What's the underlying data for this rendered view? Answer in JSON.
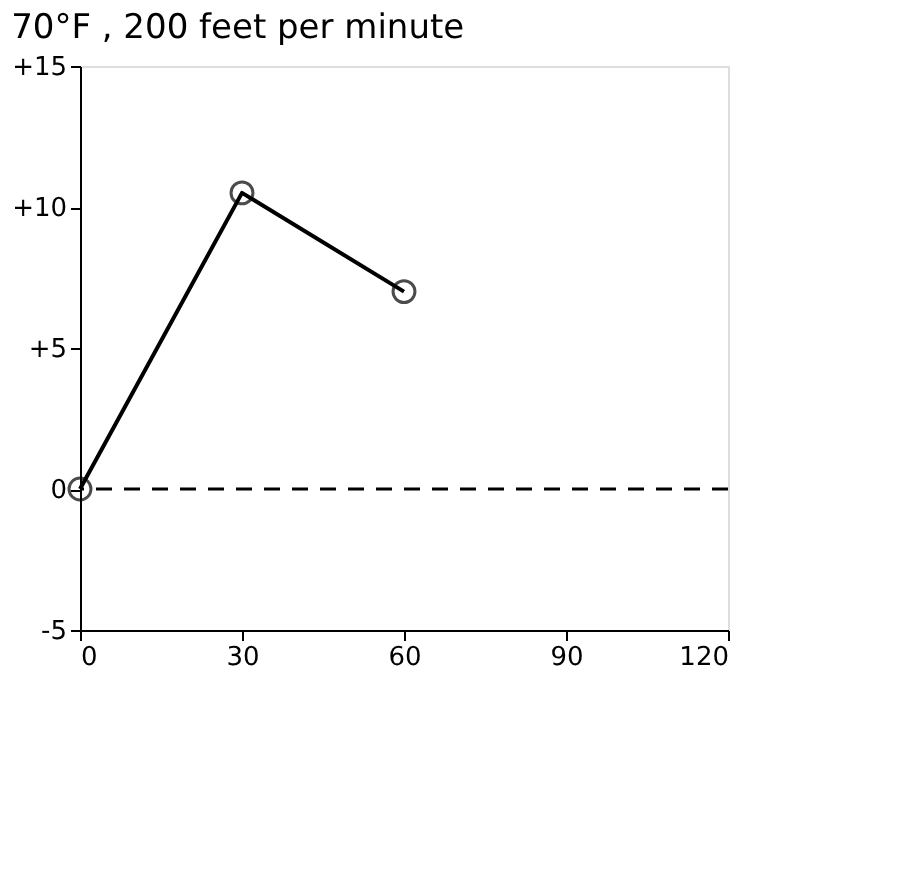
{
  "chart_data": {
    "type": "line",
    "title": "70°F , 200 feet per minute",
    "x": [
      0,
      30,
      60
    ],
    "series": [
      {
        "color": "#000000",
        "values": [
          0,
          10.5,
          7
        ]
      }
    ],
    "xlim": [
      0,
      120
    ],
    "xticks": [
      0,
      30,
      60,
      90,
      120
    ],
    "ylim": [
      -5,
      15
    ],
    "yticks": [
      {
        "value": -5,
        "label": "-5"
      },
      0,
      {
        "value": 5,
        "label": "+5"
      },
      {
        "value": 10,
        "label": "+10"
      },
      {
        "value": 15,
        "label": "+15"
      }
    ],
    "ref_lines": [
      {
        "axis": "y",
        "value": 0,
        "line_style": "dashed",
        "color": "#000000"
      }
    ],
    "marker": "circle",
    "line_style": "solid",
    "grid": false
  }
}
